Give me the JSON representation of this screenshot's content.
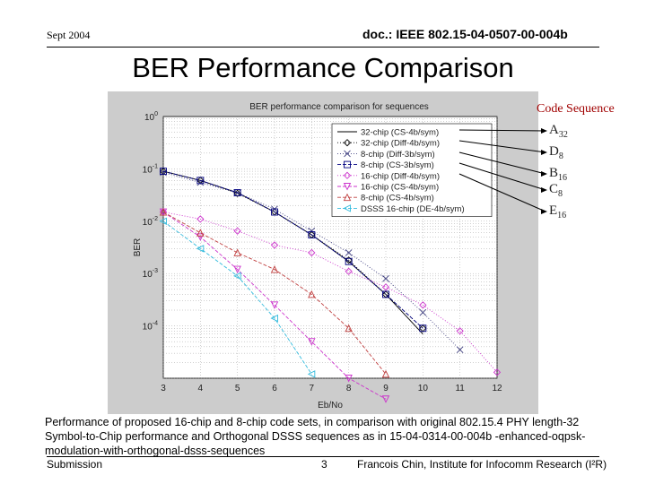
{
  "header": {
    "date": "Sept 2004",
    "doc_id": "doc.: IEEE 802.15-04-0507-00-004b"
  },
  "slide_title": "BER Performance Comparison",
  "caption": "Performance of proposed 16-chip and 8-chip code sets, in comparison with original 802.15.4 PHY length-32 Symbol-to-Chip performance and Orthogonal DSSS sequences as in 15-04-0314-00-004b -enhanced-oqpsk-modulation-with-orthogonal-dsss-sequences",
  "footer": {
    "left": "Submission",
    "page": "3",
    "author": "Francois Chin, Institute for Infocomm Research (I²R)"
  },
  "code_sequence": {
    "header": "Code Sequence",
    "labels": [
      {
        "base": "A",
        "sub": "32"
      },
      {
        "base": "D",
        "sub": "8"
      },
      {
        "base": "B",
        "sub": "16"
      },
      {
        "base": "C",
        "sub": "8"
      },
      {
        "base": "E",
        "sub": "16"
      }
    ]
  },
  "colors": {
    "figure_bg": "#cccccc",
    "plot_bg": "#ffffff",
    "arrow": "#000000"
  },
  "chart_data": {
    "type": "line",
    "title": "BER performance comparison for sequences",
    "xlabel": "Eb/No",
    "ylabel": "BER",
    "xlim": [
      3,
      12
    ],
    "ylim_log10": [
      -5,
      0
    ],
    "y_scale": "log",
    "x_ticks": [
      "3",
      "4",
      "5",
      "6",
      "7",
      "8",
      "9",
      "10",
      "11",
      "12"
    ],
    "y_ticks": [
      {
        "base": "10",
        "exp": "0"
      },
      {
        "base": "10",
        "exp": "-1"
      },
      {
        "base": "10",
        "exp": "-2"
      },
      {
        "base": "10",
        "exp": "-3"
      },
      {
        "base": "10",
        "exp": "-4"
      }
    ],
    "grid": true,
    "legend_position": "top-right",
    "series": [
      {
        "name": "32-chip (CS-4b/sym)",
        "color": "#000000",
        "marker": "none",
        "dash": "solid",
        "x": [
          3,
          4,
          5,
          6,
          7,
          8,
          9,
          10
        ],
        "y": [
          0.09,
          0.06,
          0.035,
          0.015,
          0.0055,
          0.0017,
          0.0004,
          7e-05
        ]
      },
      {
        "name": "32-chip (Diff-4b/sym)",
        "color": "#000000",
        "marker": "diamond",
        "dash": "dotted",
        "x": [
          3,
          4,
          5,
          6,
          7,
          8,
          9,
          10
        ],
        "y": [
          0.09,
          0.06,
          0.034,
          0.015,
          0.0055,
          0.0018,
          0.0004,
          9e-05
        ]
      },
      {
        "name": "8-chip (Diff-3b/sym)",
        "color": "#404080",
        "marker": "x",
        "dash": "dotted",
        "x": [
          3,
          4,
          5,
          6,
          7,
          8,
          9,
          10,
          11
        ],
        "y": [
          0.085,
          0.055,
          0.035,
          0.017,
          0.0065,
          0.0025,
          0.0008,
          0.00018,
          3.5e-05
        ]
      },
      {
        "name": "8-chip (CS-3b/sym)",
        "color": "#000080",
        "marker": "square",
        "dash": "dashed",
        "x": [
          3,
          4,
          5,
          6,
          7,
          8,
          9,
          10
        ],
        "y": [
          0.09,
          0.06,
          0.035,
          0.015,
          0.0055,
          0.0017,
          0.0004,
          9e-05
        ]
      },
      {
        "name": "16-chip (Diff-4b/sym)",
        "color": "#cc33cc",
        "marker": "diamond",
        "dash": "dotted",
        "x": [
          3,
          4,
          5,
          6,
          7,
          8,
          9,
          10,
          11,
          12
        ],
        "y": [
          0.015,
          0.011,
          0.0065,
          0.0035,
          0.0025,
          0.0011,
          0.00055,
          0.00025,
          8e-05,
          1.3e-05
        ]
      },
      {
        "name": "16-chip (CS-4b/sym)",
        "color": "#cc33cc",
        "marker": "triangle-down",
        "dash": "dashed",
        "x": [
          3,
          4,
          5,
          6,
          7,
          8,
          9
        ],
        "y": [
          0.015,
          0.005,
          0.0012,
          0.00025,
          5e-05,
          1e-05,
          4e-06
        ]
      },
      {
        "name": "8-chip (CS-4b/sym)",
        "color": "#c04040",
        "marker": "triangle-up",
        "dash": "dashed",
        "x": [
          3,
          4,
          5,
          6,
          7,
          8,
          9
        ],
        "y": [
          0.015,
          0.006,
          0.0025,
          0.0012,
          0.0004,
          9e-05,
          1.2e-05
        ]
      },
      {
        "name": "DSSS 16-chip (DE-4b/sym)",
        "color": "#33bbdd",
        "marker": "triangle-left",
        "dash": "dashed",
        "x": [
          3,
          4,
          5,
          6,
          7
        ],
        "y": [
          0.01,
          0.003,
          0.0009,
          0.00014,
          1.2e-05
        ]
      }
    ]
  }
}
